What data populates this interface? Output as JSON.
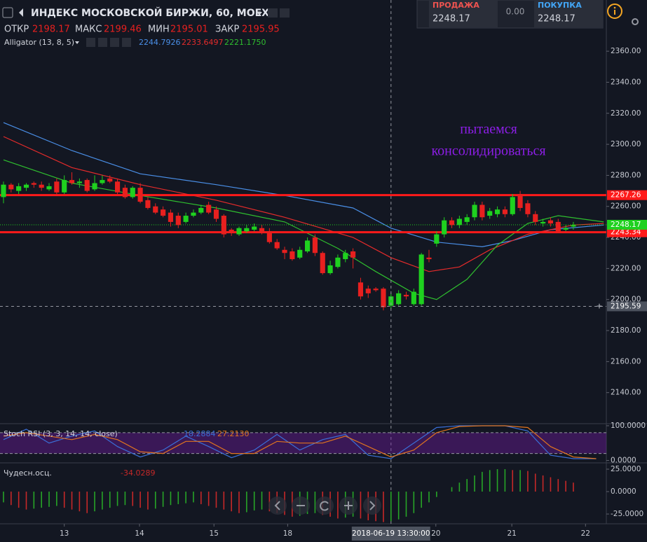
{
  "header": {
    "title": "ИНДЕКС МОСКОВСКОЙ БИРЖИ, 60, MOEX",
    "ohlc": [
      {
        "label": "ОТКР",
        "value": "2198.17"
      },
      {
        "label": "МАКС",
        "value": "2199.46"
      },
      {
        "label": "МИН",
        "value": "2195.01"
      },
      {
        "label": "ЗАКР",
        "value": "2195.95"
      }
    ]
  },
  "trade_panel": {
    "sell_label": "ПРОДАЖА",
    "sell_price": "2248.17",
    "spread": "0.00",
    "buy_label": "ПОКУПКА",
    "buy_price": "2248.17"
  },
  "chart_data": [
    {
      "type": "candlestick",
      "open": [
        2266,
        2274,
        2270,
        2272,
        2275,
        2274,
        2271,
        2276,
        2269,
        2277,
        2275,
        2277,
        2271,
        2275,
        2278,
        2276,
        2272,
        2266,
        2272,
        2264,
        2260,
        2258,
        2256,
        2254,
        2250,
        2254,
        2256,
        2261,
        2258,
        2254,
        2245,
        2242,
        2244,
        2245,
        2246,
        2244,
        2237,
        2232,
        2231,
        2227,
        2231,
        2240,
        2230,
        2217,
        2221,
        2226,
        2231,
        2211,
        2207,
        2207,
        2207,
        2196,
        2197,
        2203,
        2197,
        2197,
        2227,
        2236,
        2242,
        2251,
        2248,
        2250,
        2253,
        2261,
        2254,
        2255,
        2258,
        2255,
        2268,
        2262,
        2255,
        2249,
        2251,
        2250,
        2245,
        2247
      ],
      "high": [
        2276,
        2275,
        2275,
        2275,
        2276,
        2276,
        2275,
        2278,
        2280,
        2282,
        2278,
        2278,
        2280,
        2280,
        2280,
        2278,
        2274,
        2273,
        2275,
        2266,
        2262,
        2260,
        2258,
        2256,
        2256,
        2258,
        2261,
        2263,
        2260,
        2255,
        2246,
        2247,
        2248,
        2249,
        2248,
        2246,
        2239,
        2234,
        2233,
        2234,
        2240,
        2242,
        2231,
        2225,
        2229,
        2232,
        2233,
        2214,
        2209,
        2208,
        2208,
        2204,
        2206,
        2205,
        2207,
        2230,
        2232,
        2244,
        2253,
        2253,
        2254,
        2255,
        2263,
        2263,
        2259,
        2260,
        2260,
        2268,
        2270,
        2264,
        2257,
        2252,
        2253,
        2252,
        2248,
        2250
      ],
      "low": [
        2262,
        2269,
        2268,
        2270,
        2272,
        2270,
        2270,
        2268,
        2268,
        2274,
        2272,
        2269,
        2270,
        2274,
        2275,
        2268,
        2265,
        2265,
        2262,
        2258,
        2255,
        2253,
        2247,
        2246,
        2249,
        2253,
        2255,
        2255,
        2250,
        2240,
        2241,
        2241,
        2243,
        2244,
        2242,
        2236,
        2232,
        2226,
        2225,
        2226,
        2230,
        2228,
        2216,
        2216,
        2220,
        2224,
        2220,
        2200,
        2201,
        2205,
        2193,
        2194,
        2196,
        2200,
        2196,
        2196,
        2224,
        2234,
        2240,
        2246,
        2246,
        2248,
        2251,
        2251,
        2252,
        2253,
        2253,
        2254,
        2257,
        2253,
        2248,
        2247,
        2247,
        2243,
        2244,
        2245
      ],
      "close": [
        2274,
        2271,
        2273,
        2274,
        2274,
        2272,
        2273,
        2269,
        2277,
        2275,
        2276,
        2270,
        2275,
        2277,
        2276,
        2269,
        2266,
        2272,
        2263,
        2259,
        2256,
        2254,
        2250,
        2248,
        2254,
        2256,
        2259,
        2256,
        2252,
        2242,
        2243,
        2246,
        2246,
        2247,
        2243,
        2237,
        2233,
        2230,
        2226,
        2232,
        2238,
        2230,
        2217,
        2222,
        2227,
        2230,
        2227,
        2202,
        2204,
        2206,
        2195,
        2202,
        2204,
        2202,
        2205,
        2229,
        2226,
        2242,
        2251,
        2248,
        2252,
        2253,
        2261,
        2253,
        2257,
        2258,
        2255,
        2266,
        2259,
        2255,
        2250,
        2250,
        2249,
        2244,
        2246,
        2248
      ],
      "up_color": "#1fd11f",
      "down_color": "#e8201f",
      "ylim": [
        2120,
        2393
      ],
      "yticks": [
        {
          "value": 2140,
          "label": "2140.00"
        },
        {
          "value": 2160,
          "label": "2160.00"
        },
        {
          "value": 2180,
          "label": "2180.00"
        },
        {
          "value": 2200,
          "label": "2200.00"
        },
        {
          "value": 2220,
          "label": "2220.00"
        },
        {
          "value": 2240,
          "label": "2240.00"
        },
        {
          "value": 2260,
          "label": "2260.00"
        },
        {
          "value": 2280,
          "label": "2280.00"
        },
        {
          "value": 2300,
          "label": "2300.00"
        },
        {
          "value": 2320,
          "label": "2320.00"
        },
        {
          "value": 2340,
          "label": "2340.00"
        },
        {
          "value": 2360,
          "label": "2360.00"
        }
      ],
      "xlim": [
        -0.46,
        79.34
      ],
      "xticks": [
        {
          "value": 8,
          "label": "13"
        },
        {
          "value": 17.9,
          "label": "14"
        },
        {
          "value": 27.7,
          "label": "15"
        },
        {
          "value": 37.4,
          "label": "18"
        },
        {
          "value": 56.9,
          "label": "20"
        },
        {
          "value": 66.9,
          "label": "21"
        },
        {
          "value": 76.6,
          "label": "22"
        }
      ],
      "indicator": {
        "name": "Alligator (13, 8, 5)",
        "lines": [
          {
            "color": "#4a8fe7",
            "legend_value": "2244.7926",
            "x": [
              0,
              9,
              18,
              28,
              37,
              46,
              51,
              57,
              63,
              67,
              72,
              79
            ],
            "values": [
              2314,
              2296,
              2281,
              2274,
              2267,
              2259,
              2246,
              2237,
              2234,
              2238,
              2245,
              2248
            ]
          },
          {
            "color": "#e52b2b",
            "legend_value": "2233.6497",
            "x": [
              0,
              9,
              18,
              28,
              37,
              46,
              51,
              56,
              60,
              64,
              69,
              75,
              79
            ],
            "values": [
              2305,
              2285,
              2274,
              2264,
              2253,
              2240,
              2227,
              2218,
              2221,
              2232,
              2242,
              2248,
              2249
            ]
          },
          {
            "color": "#2fbf2f",
            "legend_value": "2221.1750",
            "x": [
              0,
              9,
              18,
              28,
              37,
              44,
              49,
              54,
              57,
              61,
              65,
              69,
              73,
              79
            ],
            "values": [
              2290,
              2275,
              2267,
              2259,
              2250,
              2233,
              2218,
              2204,
              2200,
              2213,
              2235,
              2249,
              2254,
              2250
            ]
          }
        ]
      },
      "levels": [
        {
          "value": 2267.26,
          "color": "#ff1a1a"
        },
        {
          "value": 2243.34,
          "color": "#ff1a1a"
        }
      ],
      "last_price": {
        "value": 2248.17,
        "color": "#1fd11f"
      },
      "crosshair": {
        "x": 51,
        "x_label": "2018-06-19 13:30:00",
        "y": 2195.59
      },
      "annotation": {
        "lines": [
          "пытаемся",
          "консолидироваться"
        ],
        "color": "#8c1ee6"
      }
    },
    {
      "type": "line",
      "name": "Stoch RSI (3, 3, 14, 14, close)",
      "ylim": [
        -5,
        106
      ],
      "yticks": [
        {
          "value": 100,
          "label": "100.0000"
        },
        {
          "value": 0,
          "label": "0.0000"
        }
      ],
      "band": [
        20,
        80
      ],
      "band_color": "#6a1b9a",
      "series": [
        {
          "color": "#3a6fd8",
          "legend_value": "18.2884",
          "x": [
            0,
            3,
            6,
            9,
            12,
            15,
            18,
            21,
            24,
            27,
            30,
            33,
            36,
            39,
            42,
            45,
            48,
            51,
            54,
            57,
            60,
            63,
            66,
            69,
            72,
            75,
            78
          ],
          "values": [
            60,
            90,
            50,
            70,
            85,
            40,
            10,
            30,
            70,
            40,
            8,
            30,
            75,
            30,
            60,
            75,
            15,
            5,
            50,
            95,
            100,
            100,
            100,
            85,
            15,
            5,
            5
          ]
        },
        {
          "color": "#e0741f",
          "legend_value": "27.2130",
          "x": [
            0,
            3,
            6,
            9,
            12,
            15,
            18,
            21,
            24,
            27,
            30,
            33,
            36,
            39,
            42,
            45,
            48,
            51,
            54,
            57,
            60,
            63,
            66,
            69,
            72,
            75,
            78
          ],
          "values": [
            70,
            80,
            70,
            60,
            75,
            60,
            25,
            20,
            55,
            55,
            20,
            20,
            55,
            50,
            50,
            70,
            40,
            10,
            30,
            80,
            98,
            100,
            100,
            95,
            40,
            10,
            5
          ]
        }
      ]
    },
    {
      "type": "bar",
      "name": "Чудесн.осц.",
      "legend_value": "-34.0289",
      "values": [
        -12,
        -15,
        -18,
        -20,
        -19,
        -18,
        -17,
        -16,
        -18,
        -20,
        -22,
        -24,
        -22,
        -20,
        -18,
        -16,
        -15,
        -16,
        -18,
        -20,
        -19,
        -17,
        -15,
        -14,
        -13,
        -12,
        -14,
        -16,
        -18,
        -20,
        -22,
        -24,
        -23,
        -21,
        -20,
        -22,
        -24,
        -26,
        -28,
        -27,
        -25,
        -24,
        -26,
        -28,
        -30,
        -29,
        -28,
        -30,
        -32,
        -33,
        -34,
        -33,
        -31,
        -28,
        -24,
        -18,
        -12,
        -6,
        0,
        5,
        10,
        14,
        18,
        22,
        24,
        25,
        25,
        24,
        24,
        23,
        20,
        18,
        16,
        14,
        12,
        10
      ],
      "up_color": "#27a527",
      "down_color": "#c62828",
      "ylim": [
        -35.9,
        31.25
      ],
      "yticks": [
        {
          "value": 25,
          "label": "25.0000"
        },
        {
          "value": 0,
          "label": "0.0000"
        },
        {
          "value": -25,
          "label": "-25.0000"
        }
      ]
    }
  ]
}
